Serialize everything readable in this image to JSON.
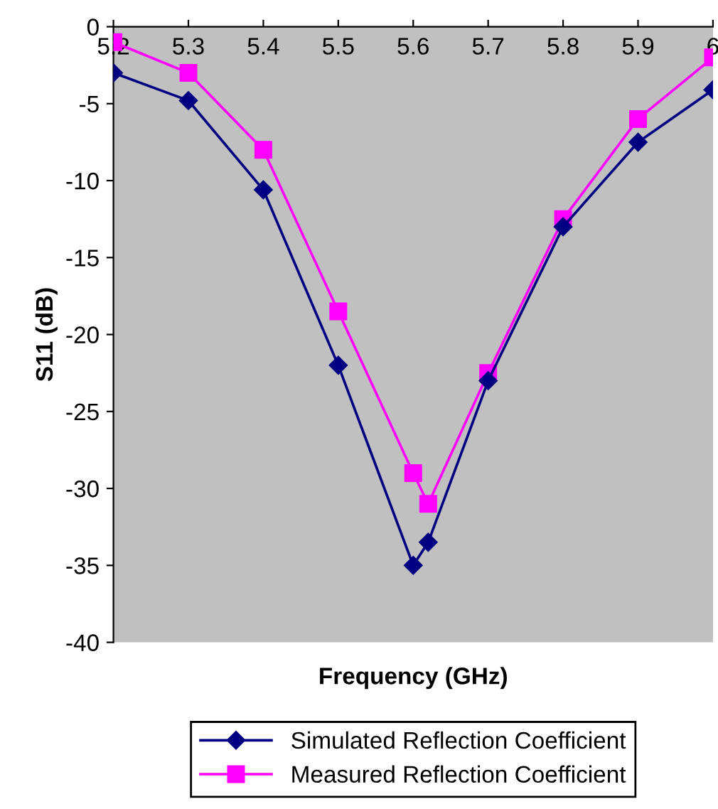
{
  "chart_data": {
    "type": "line",
    "xlabel": "Frequency (GHz)",
    "ylabel": "S11 (dB)",
    "x": [
      5.2,
      5.3,
      5.4,
      5.5,
      5.6,
      5.62,
      5.7,
      5.8,
      5.9,
      6
    ],
    "series": [
      {
        "name": "Simulated Reflection Coefficient",
        "color": "#000080",
        "marker": "diamond",
        "values": [
          -3,
          -4.8,
          -10.6,
          -22,
          -35,
          -33.5,
          -23,
          -13,
          -7.5,
          -4.1
        ]
      },
      {
        "name": "Measured Reflection Coefficient",
        "color": "#ff00ff",
        "marker": "square",
        "values": [
          -1,
          -3,
          -8,
          -18.5,
          -29,
          -31,
          -22.5,
          -12.5,
          -6,
          -2
        ]
      }
    ],
    "xlim": [
      5.2,
      6
    ],
    "xticks": [
      5.2,
      5.3,
      5.4,
      5.5,
      5.6,
      5.7,
      5.8,
      5.9,
      {
        "value": 6,
        "label": "6"
      }
    ],
    "ylim": [
      -40,
      0
    ],
    "yticks": [
      -40,
      -35,
      -30,
      -25,
      -20,
      -15,
      -10,
      -5,
      0
    ],
    "grid": false,
    "legend": "bottom",
    "line_style": "solid"
  }
}
